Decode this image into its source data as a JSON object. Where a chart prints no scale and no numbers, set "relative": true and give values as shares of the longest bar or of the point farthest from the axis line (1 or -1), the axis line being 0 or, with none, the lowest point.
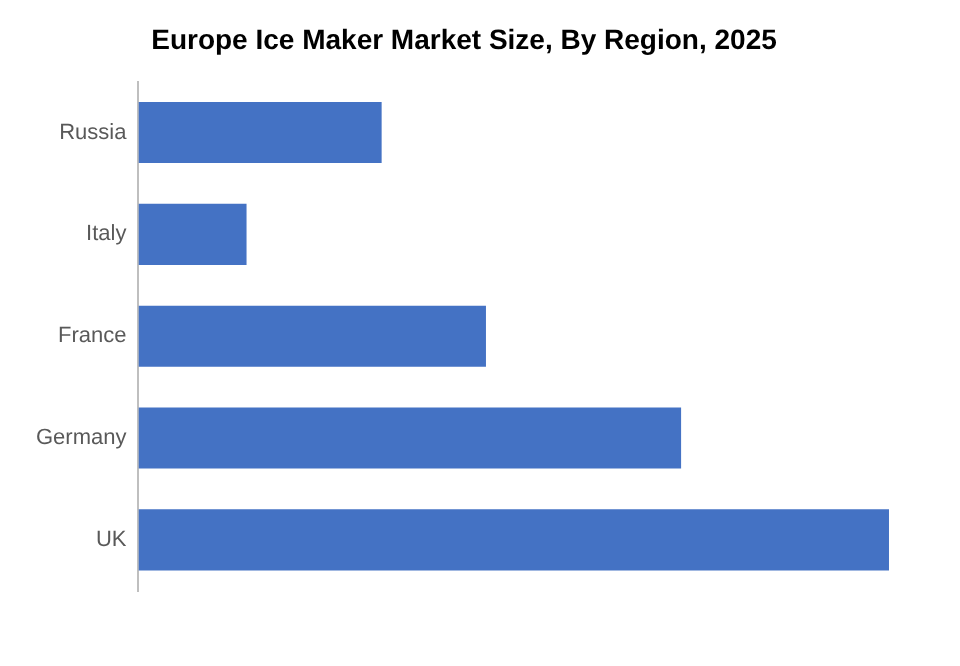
{
  "chart_data": {
    "type": "bar",
    "title": "Europe Ice Maker Market Size, By Region, 2025",
    "orientation": "horizontal",
    "relative": true,
    "categories": [
      "Russia",
      "Italy",
      "France",
      "Germany",
      "UK"
    ],
    "series": [
      {
        "color": "#4472c4",
        "values": [
          0.324,
          0.144,
          0.463,
          0.723,
          1
        ]
      }
    ],
    "grid": false,
    "legend": false
  }
}
